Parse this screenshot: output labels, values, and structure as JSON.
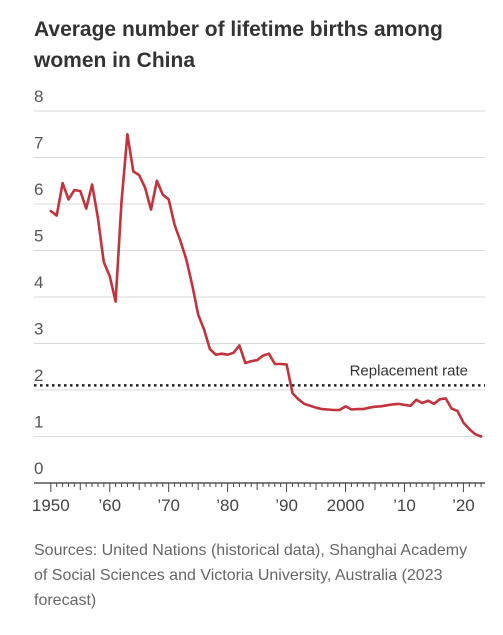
{
  "chart_data": {
    "type": "line",
    "title": "Average number of lifetime births among women in China",
    "xlabel": "",
    "ylabel": "",
    "xlim": [
      1948,
      2024
    ],
    "ylim": [
      0,
      8
    ],
    "y_ticks": [
      "0",
      "1",
      "2",
      "3",
      "4",
      "5",
      "6",
      "7",
      "8"
    ],
    "x_ticks": [
      {
        "value": 1950,
        "label": "1950"
      },
      {
        "value": 1960,
        "label": "’60"
      },
      {
        "value": 1970,
        "label": "’70"
      },
      {
        "value": 1980,
        "label": "’80"
      },
      {
        "value": 1990,
        "label": "’90"
      },
      {
        "value": 2000,
        "label": "2000"
      },
      {
        "value": 2010,
        "label": "’10"
      },
      {
        "value": 2020,
        "label": "’20"
      }
    ],
    "grid": "horizontal",
    "series": [
      {
        "color": "#c4323c",
        "x": [
          1950,
          1951,
          1952,
          1953,
          1954,
          1955,
          1956,
          1957,
          1958,
          1959,
          1960,
          1961,
          1962,
          1963,
          1964,
          1965,
          1966,
          1967,
          1968,
          1969,
          1970,
          1971,
          1972,
          1973,
          1974,
          1975,
          1976,
          1977,
          1978,
          1979,
          1980,
          1981,
          1982,
          1983,
          1984,
          1985,
          1986,
          1987,
          1988,
          1989,
          1990,
          1991,
          1992,
          1993,
          1994,
          1995,
          1996,
          1997,
          1998,
          1999,
          2000,
          2001,
          2002,
          2003,
          2004,
          2005,
          2006,
          2007,
          2008,
          2009,
          2010,
          2011,
          2012,
          2013,
          2014,
          2015,
          2016,
          2017,
          2018,
          2019,
          2020,
          2021,
          2022,
          2023
        ],
        "values": [
          5.85,
          5.75,
          6.45,
          6.1,
          6.3,
          6.28,
          5.9,
          6.42,
          5.7,
          4.75,
          4.45,
          3.9,
          6.05,
          7.5,
          6.7,
          6.62,
          6.35,
          5.88,
          6.5,
          6.2,
          6.1,
          5.55,
          5.2,
          4.8,
          4.25,
          3.62,
          3.3,
          2.88,
          2.76,
          2.78,
          2.76,
          2.8,
          2.96,
          2.58,
          2.62,
          2.64,
          2.74,
          2.78,
          2.56,
          2.56,
          2.55,
          1.93,
          1.8,
          1.7,
          1.66,
          1.62,
          1.59,
          1.58,
          1.57,
          1.57,
          1.65,
          1.58,
          1.59,
          1.59,
          1.62,
          1.64,
          1.65,
          1.67,
          1.69,
          1.7,
          1.68,
          1.66,
          1.79,
          1.72,
          1.77,
          1.7,
          1.8,
          1.82,
          1.6,
          1.55,
          1.3,
          1.16,
          1.05,
          1.0
        ]
      }
    ],
    "annotations": [
      {
        "text": "Replacement rate",
        "y": 2.1,
        "style": "dotted"
      }
    ]
  },
  "source_text": "Sources: United Nations (historical data), Shanghai Academy of Social Sciences and Victoria University, Australia (2023 forecast)"
}
